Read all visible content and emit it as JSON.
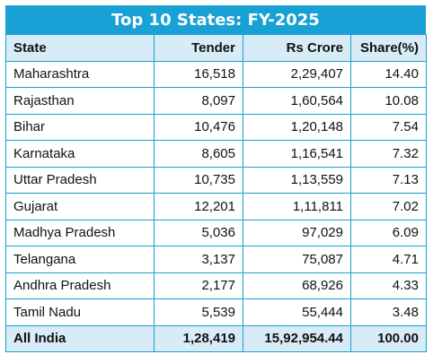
{
  "chart_data": {
    "type": "table",
    "title": "Top 10 States: FY-2025",
    "columns": [
      "State",
      "Tender",
      "Rs Crore",
      "Share(%)"
    ],
    "rows": [
      [
        "Maharashtra",
        "16,518",
        "2,29,407",
        "14.40"
      ],
      [
        "Rajasthan",
        "8,097",
        "1,60,564",
        "10.08"
      ],
      [
        "Bihar",
        "10,476",
        "1,20,148",
        "7.54"
      ],
      [
        "Karnataka",
        "8,605",
        "1,16,541",
        "7.32"
      ],
      [
        "Uttar Pradesh",
        "10,735",
        "1,13,559",
        "7.13"
      ],
      [
        "Gujarat",
        "12,201",
        "1,11,811",
        "7.02"
      ],
      [
        "Madhya Pradesh",
        "5,036",
        "97,029",
        "6.09"
      ],
      [
        "Telangana",
        "3,137",
        "75,087",
        "4.71"
      ],
      [
        "Andhra Pradesh",
        "2,177",
        "68,926",
        "4.33"
      ],
      [
        "Tamil Nadu",
        "5,539",
        "55,444",
        "3.48"
      ]
    ],
    "total": [
      "All India",
      "1,28,419",
      "15,92,954.44",
      "100.00"
    ]
  }
}
